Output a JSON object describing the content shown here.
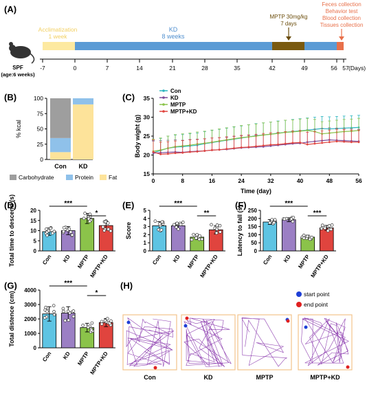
{
  "panels": {
    "A": "(A)",
    "B": "(B)",
    "C": "(C)",
    "D": "(D)",
    "E": "(E)",
    "F": "(F)",
    "G": "(G)",
    "H": "(H)"
  },
  "timeline": {
    "mouse_label_1": "SPF",
    "mouse_label_2": "(age:6 weeks)",
    "accl_1": "Acclimatization",
    "accl_2": "1 week",
    "kd_1": "KD",
    "kd_2": "8 weeks",
    "mptp_1": "MPTP 30mg/kg",
    "mptp_2": "7 days",
    "coll_1": "Feces collection",
    "coll_2": "Behavior test",
    "coll_3": "Blood collection",
    "coll_4": "Tissues collection",
    "ticks": [
      "-7",
      "0",
      "7",
      "14",
      "21",
      "28",
      "35",
      "42",
      "49",
      "56",
      "57"
    ],
    "unit": "(Days)",
    "colors": {
      "accl": "#fde9a0",
      "kd": "#5b9bd5",
      "mptp": "#7a5a10",
      "end": "#e8704a"
    }
  },
  "chart_data": [
    {
      "type": "bar",
      "stacked": true,
      "id": "B",
      "categories": [
        "Con",
        "KD"
      ],
      "series": [
        {
          "name": "Fat",
          "values": [
            12,
            90
          ],
          "color": "#fde39a"
        },
        {
          "name": "Protein",
          "values": [
            23,
            10
          ],
          "color": "#8fc1ea"
        },
        {
          "name": "Carbohydrate",
          "values": [
            65,
            0
          ],
          "color": "#9e9e9e"
        }
      ],
      "ylabel": "% kcal",
      "ylim": [
        0,
        100
      ],
      "yticks": [
        "0",
        "25",
        "50",
        "75",
        "100"
      ],
      "legend": "bottom"
    },
    {
      "type": "line",
      "id": "C",
      "x": [
        0,
        2,
        4,
        6,
        8,
        10,
        12,
        14,
        16,
        18,
        20,
        22,
        24,
        26,
        28,
        30,
        32,
        34,
        36,
        38,
        40,
        42,
        44,
        46,
        48,
        50,
        52,
        54,
        56
      ],
      "series": [
        {
          "name": "Con",
          "color": "#2cb5c0",
          "values": [
            20.6,
            21.2,
            21.8,
            22.1,
            22.2,
            22.4,
            22.6,
            23,
            23.3,
            23.6,
            23.9,
            24.2,
            24.5,
            24.8,
            25.1,
            25.3,
            25.5,
            25.8,
            26,
            26.2,
            26.4,
            26.6,
            26.8,
            27,
            26.9,
            27,
            27.1,
            27.2,
            27.3
          ]
        },
        {
          "name": "KD",
          "color": "#7a4a9a",
          "values": [
            20.5,
            20.6,
            20.7,
            20.8,
            20.7,
            20.9,
            21,
            21.1,
            21.3,
            21.4,
            21.5,
            21.7,
            21.9,
            22,
            22.1,
            22.2,
            22.4,
            22.6,
            22.8,
            23,
            23.1,
            23.4,
            23.6,
            23.8,
            24,
            23.9,
            23.8,
            23.7,
            23.6
          ]
        },
        {
          "name": "MPTP",
          "color": "#8bc34a",
          "values": [
            21,
            21.3,
            21.8,
            22.2,
            22.4,
            22.6,
            22.9,
            23.1,
            23.4,
            23.7,
            24,
            24.3,
            24.6,
            24.8,
            25,
            25.3,
            25.5,
            25.7,
            26,
            26.1,
            26.3,
            26.5,
            26.2,
            25.6,
            25.8,
            26,
            26.2,
            26.3,
            26.5
          ]
        },
        {
          "name": "MPTP+KD",
          "color": "#e0443e",
          "values": [
            20.8,
            20.2,
            20.3,
            20.5,
            20.6,
            20.8,
            20.9,
            21.1,
            21.3,
            21.4,
            21.6,
            21.8,
            22,
            22.1,
            22.3,
            22.5,
            22.7,
            22.8,
            23,
            23.2,
            23.3,
            22.8,
            23,
            23.2,
            23.4,
            23.6,
            23.5,
            23.4,
            23.4
          ]
        }
      ],
      "xlabel": "Time (day)",
      "ylabel": "Body wight (g)",
      "ylim": [
        15,
        35
      ],
      "xticks": [
        "0",
        "8",
        "16",
        "24",
        "32",
        "40",
        "48",
        "56"
      ],
      "yticks": [
        "15",
        "20",
        "25",
        "30",
        "35"
      ]
    },
    {
      "type": "bar",
      "id": "D",
      "categories": [
        "Con",
        "KD",
        "MPTP",
        "MPTP+KD"
      ],
      "values": [
        9.5,
        10,
        16,
        12.5
      ],
      "errors": [
        1.8,
        2,
        2.5,
        2.2
      ],
      "ylim": [
        0,
        20
      ],
      "yticks": [
        "0",
        "5",
        "10",
        "15",
        "20"
      ],
      "ylabel": "Total time to descend (s)",
      "significance": [
        {
          "pair": [
            0,
            2
          ],
          "label": "***"
        },
        {
          "pair": [
            2,
            3
          ],
          "label": "*"
        }
      ]
    },
    {
      "type": "bar",
      "id": "E",
      "categories": [
        "Con",
        "KD",
        "MPTP",
        "MPTP+KD"
      ],
      "values": [
        3.1,
        3.1,
        1.7,
        2.6
      ],
      "errors": [
        0.5,
        0.35,
        0.3,
        0.5
      ],
      "ylim": [
        0,
        5
      ],
      "yticks": [
        "0",
        "1",
        "2",
        "3",
        "4",
        "5"
      ],
      "ylabel": "Score",
      "significance": [
        {
          "pair": [
            0,
            2
          ],
          "label": "***"
        },
        {
          "pair": [
            2,
            3
          ],
          "label": "**"
        }
      ]
    },
    {
      "type": "bar",
      "id": "F",
      "categories": [
        "Con",
        "KD",
        "MPTP",
        "MPTP+KD"
      ],
      "values": [
        178,
        192,
        85,
        142
      ],
      "errors": [
        15,
        12,
        12,
        15
      ],
      "ylim": [
        0,
        250
      ],
      "yticks": [
        "0",
        "50",
        "100",
        "150",
        "200",
        "250"
      ],
      "ylabel": "Latency to fall (s)",
      "significance": [
        {
          "pair": [
            0,
            2
          ],
          "label": "***"
        },
        {
          "pair": [
            2,
            3
          ],
          "label": "***"
        }
      ]
    },
    {
      "type": "bar",
      "id": "G",
      "categories": [
        "Con",
        "KD",
        "MPTP",
        "MPTP+KD"
      ],
      "values": [
        2350,
        2400,
        1400,
        1750
      ],
      "errors": [
        500,
        450,
        300,
        280
      ],
      "ylim": [
        0,
        4000
      ],
      "yticks": [
        "0",
        "1000",
        "2000",
        "3000",
        "4000"
      ],
      "ylabel": "Total distence (cm)",
      "significance": [
        {
          "pair": [
            0,
            2
          ],
          "label": "***"
        },
        {
          "pair": [
            2,
            3
          ],
          "label": "*"
        }
      ]
    }
  ],
  "bar_colors": [
    "#5ec4e3",
    "#9b7fc4",
    "#8bc34a",
    "#e0443e"
  ],
  "legend_B": {
    "carb": "Carbohydrate",
    "protein": "Protein",
    "fat": "Fat"
  },
  "openfield": {
    "labels": [
      "Con",
      "KD",
      "MPTP",
      "MPTP+KD"
    ],
    "start_label": "start point",
    "end_label": "end point",
    "start_color": "#1e3fd6",
    "end_color": "#e02020",
    "track_color": "#8e3fb0",
    "frame_color": "#f2c38a"
  }
}
